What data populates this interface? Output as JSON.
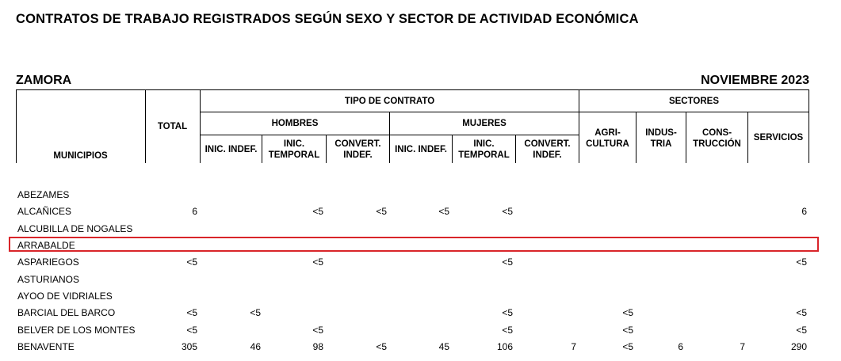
{
  "title": "CONTRATOS DE TRABAJO REGISTRADOS SEGÚN SEXO Y SECTOR  DE ACTIVIDAD ECONÓMICA",
  "province": "ZAMORA",
  "period": "NOVIEMBRE 2023",
  "headers": {
    "municipios": "MUNICIPIOS",
    "total": "TOTAL",
    "tipo_contrato": "TIPO DE CONTRATO",
    "sectores": "SECTORES",
    "hombres": "HOMBRES",
    "mujeres": "MUJERES",
    "h_inic_indef": "INIC. INDEF.",
    "h_inic_temporal_1": "INIC.",
    "h_inic_temporal_2": "TEMPORAL",
    "h_convert_1": "CONVERT.",
    "h_convert_2": "INDEF.",
    "m_inic_indef": "INIC. INDEF.",
    "m_inic_temporal_1": "INIC.",
    "m_inic_temporal_2": "TEMPORAL",
    "m_convert_1": "CONVERT.",
    "m_convert_2": "INDEF.",
    "agri_1": "AGRI-",
    "agri_2": "CULTURA",
    "ind_1": "INDUS-",
    "ind_2": "TRIA",
    "cons_1": "CONS-",
    "cons_2": "TRUCCIÓN",
    "servicios": "SERVICIOS"
  },
  "rows": [
    {
      "m": "ABEZAMES",
      "total": "",
      "h_ii": "",
      "h_it": "",
      "h_ci": "",
      "m_ii": "",
      "m_it": "",
      "m_ci": "",
      "agr": "",
      "ind": "",
      "con": "",
      "ser": ""
    },
    {
      "m": "ALCAÑICES",
      "total": "6",
      "h_ii": "",
      "h_it": "<5",
      "h_ci": "<5",
      "m_ii": "<5",
      "m_it": "<5",
      "m_ci": "",
      "agr": "",
      "ind": "",
      "con": "",
      "ser": "6"
    },
    {
      "m": "ALCUBILLA DE NOGALES",
      "total": "",
      "h_ii": "",
      "h_it": "",
      "h_ci": "",
      "m_ii": "",
      "m_it": "",
      "m_ci": "",
      "agr": "",
      "ind": "",
      "con": "",
      "ser": ""
    },
    {
      "m": "ARRABALDE",
      "total": "",
      "h_ii": "",
      "h_it": "",
      "h_ci": "",
      "m_ii": "",
      "m_it": "",
      "m_ci": "",
      "agr": "",
      "ind": "",
      "con": "",
      "ser": ""
    },
    {
      "m": "ASPARIEGOS",
      "total": "<5",
      "h_ii": "",
      "h_it": "<5",
      "h_ci": "",
      "m_ii": "",
      "m_it": "<5",
      "m_ci": "",
      "agr": "",
      "ind": "",
      "con": "",
      "ser": "<5"
    },
    {
      "m": "ASTURIANOS",
      "total": "",
      "h_ii": "",
      "h_it": "",
      "h_ci": "",
      "m_ii": "",
      "m_it": "",
      "m_ci": "",
      "agr": "",
      "ind": "",
      "con": "",
      "ser": ""
    },
    {
      "m": "AYOO DE VIDRIALES",
      "total": "",
      "h_ii": "",
      "h_it": "",
      "h_ci": "",
      "m_ii": "",
      "m_it": "",
      "m_ci": "",
      "agr": "",
      "ind": "",
      "con": "",
      "ser": ""
    },
    {
      "m": "BARCIAL DEL BARCO",
      "total": "<5",
      "h_ii": "<5",
      "h_it": "",
      "h_ci": "",
      "m_ii": "",
      "m_it": "<5",
      "m_ci": "",
      "agr": "<5",
      "ind": "",
      "con": "",
      "ser": "<5"
    },
    {
      "m": "BELVER DE LOS MONTES",
      "total": "<5",
      "h_ii": "",
      "h_it": "<5",
      "h_ci": "",
      "m_ii": "",
      "m_it": "<5",
      "m_ci": "",
      "agr": "<5",
      "ind": "",
      "con": "",
      "ser": "<5"
    },
    {
      "m": "BENAVENTE",
      "total": "305",
      "h_ii": "46",
      "h_it": "98",
      "h_ci": "<5",
      "m_ii": "45",
      "m_it": "106",
      "m_ci": "7",
      "agr": "<5",
      "ind": "6",
      "con": "7",
      "ser": "290"
    }
  ]
}
